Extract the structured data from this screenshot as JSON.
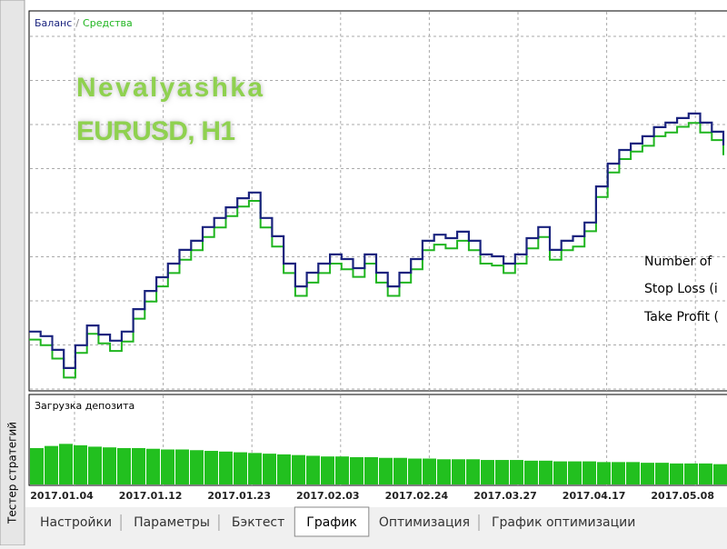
{
  "window": {
    "side_tab": "Тестер стратегий",
    "tabs": [
      "Настройки",
      "Параметры",
      "Бэктест",
      "График",
      "Оптимизация",
      "График оптимизации"
    ],
    "active_tab": 3,
    "x_labels": [
      "2017.01.04",
      "2017.01.12",
      "2017.01.23",
      "2017.02.03",
      "2017.02.24",
      "2017.03.27",
      "2017.04.17",
      "2017.05.08"
    ]
  },
  "chart_data": [
    {
      "type": "line",
      "legend_separator": "/",
      "annotations": [
        "Nevalyashka",
        "EURUSD, H1"
      ],
      "info_lines": [
        "Number of",
        "Stop Loss (i",
        "Take Profit ("
      ],
      "ylim": [
        0,
        100
      ],
      "series": [
        {
          "name": "Средства",
          "color": "#1fb51f",
          "values": [
            13.5,
            12.0,
            8.5,
            3.5,
            10.0,
            15.0,
            12.5,
            10.5,
            13.0,
            19.0,
            23.5,
            27.5,
            31.0,
            34.5,
            37.0,
            40.5,
            43.0,
            46.0,
            48.5,
            50.0,
            43.0,
            38.0,
            31.0,
            25.0,
            28.5,
            31.0,
            33.5,
            32.0,
            30.0,
            33.5,
            28.5,
            25.0,
            28.5,
            32.0,
            37.0,
            38.5,
            37.5,
            39.5,
            37.0,
            33.5,
            33.0,
            31.0,
            33.5,
            37.5,
            40.5,
            34.5,
            37.0,
            38.0,
            42.0,
            51.0,
            57.5,
            61.0,
            63.0,
            64.5,
            67.0,
            68.0,
            69.5,
            70.5,
            68.0,
            66.0,
            62.0
          ]
        },
        {
          "name": "Баланс",
          "color": "#1a237e",
          "values": [
            15.6,
            14.4,
            10.8,
            6.0,
            12.0,
            17.2,
            14.8,
            13.2,
            15.6,
            21.5,
            26.3,
            29.9,
            33.5,
            37.1,
            39.5,
            43.1,
            45.5,
            48.3,
            50.7,
            52.2,
            45.5,
            40.7,
            33.5,
            27.5,
            31.1,
            33.5,
            35.9,
            34.7,
            32.3,
            35.9,
            31.1,
            27.5,
            31.1,
            34.7,
            39.5,
            41.1,
            40.2,
            41.9,
            39.5,
            35.9,
            35.4,
            33.5,
            35.9,
            40.2,
            43.1,
            37.1,
            39.5,
            40.7,
            44.3,
            53.8,
            59.8,
            63.4,
            65.1,
            67.0,
            69.4,
            70.6,
            71.8,
            73.0,
            70.6,
            68.2,
            64.6
          ]
        }
      ]
    },
    {
      "type": "bar",
      "title": "Загрузка депозита",
      "color": "#22c01f",
      "ylim": [
        0,
        100
      ],
      "values": [
        52,
        55,
        58,
        56,
        54,
        53,
        52,
        52,
        51,
        50,
        50,
        49,
        48,
        47,
        46,
        45,
        44,
        43,
        42,
        41,
        40,
        40,
        39,
        39,
        38,
        38,
        37,
        37,
        36,
        36,
        36,
        35,
        35,
        35,
        34,
        34,
        33,
        33,
        33,
        32,
        32,
        32,
        31,
        31,
        30,
        30,
        30,
        29
      ]
    }
  ]
}
